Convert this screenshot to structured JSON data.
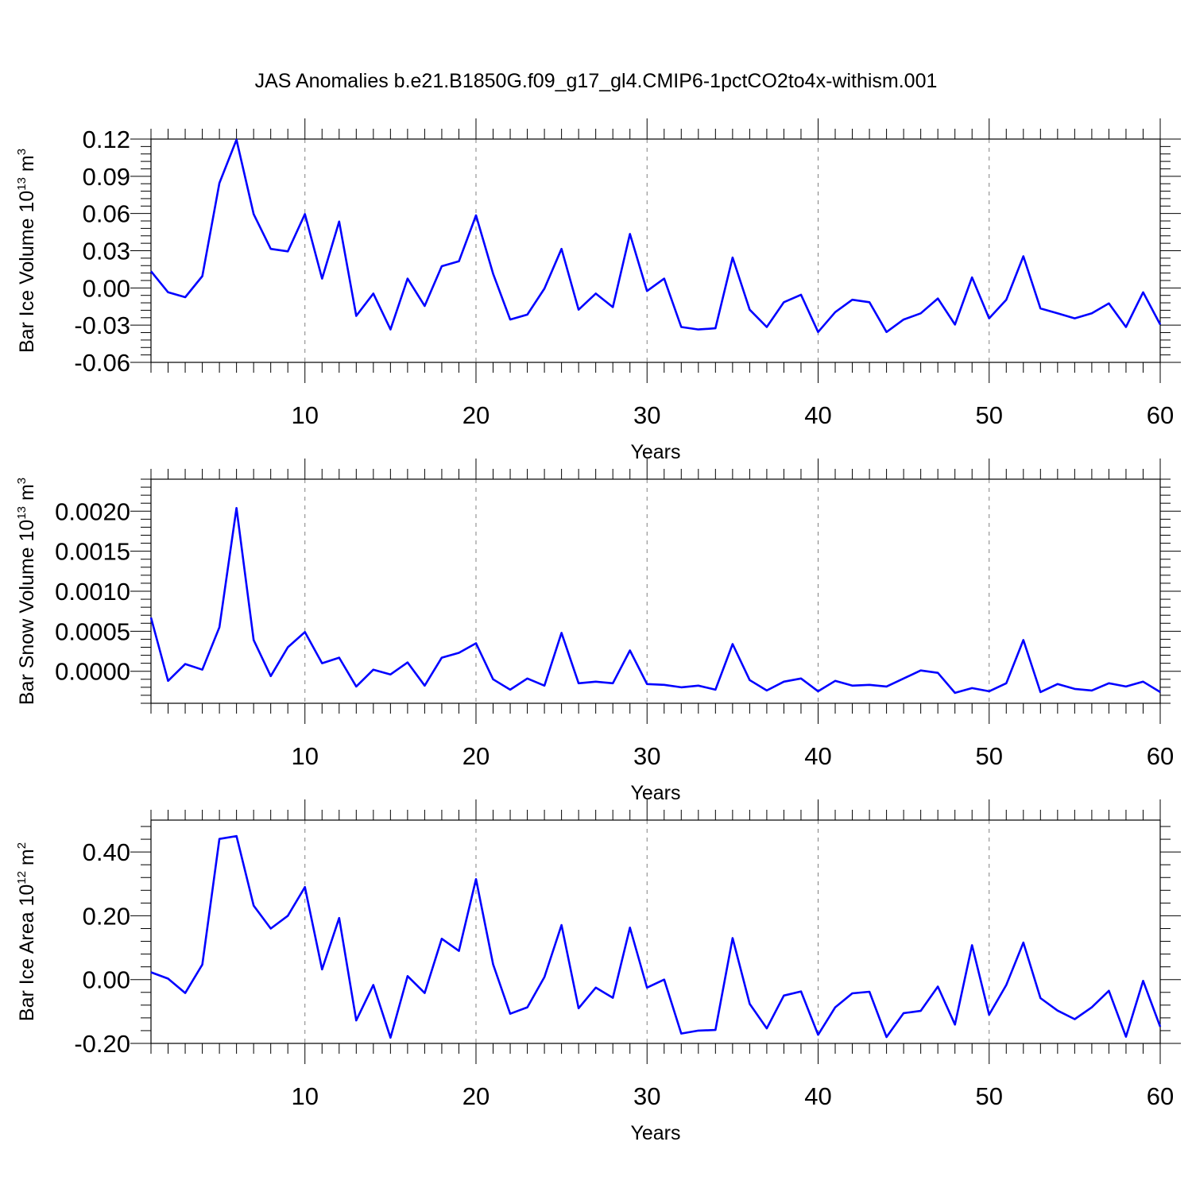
{
  "title": "JAS Anomalies b.e21.B1850G.f09_g17_gl4.CMIP6-1pctCO2to4x-withism.001",
  "colors": {
    "series": "#0000ff",
    "axes": "#000000",
    "grid": "#808080"
  },
  "chart_data": [
    {
      "type": "line",
      "ylabel": {
        "text": "Bar Ice Volume 10",
        "exponent": "13",
        "unit": " m",
        "unit_exponent": "3"
      },
      "xlabel": "Years",
      "xlim": [
        1,
        60
      ],
      "ylim": [
        -0.06,
        0.12
      ],
      "xticks": [
        10,
        20,
        30,
        40,
        50,
        60
      ],
      "xtick_labels": [
        "10",
        "20",
        "30",
        "40",
        "50",
        "60"
      ],
      "yticks": [
        -0.06,
        -0.03,
        0.0,
        0.03,
        0.06,
        0.09,
        0.12
      ],
      "ytick_labels": [
        "-0.06",
        "-0.03",
        "0.00",
        "0.03",
        "0.06",
        "0.09",
        "0.12"
      ],
      "grid": "dashed vertical at x ticks",
      "x": [
        1,
        2,
        3,
        4,
        5,
        6,
        7,
        8,
        9,
        10,
        11,
        12,
        13,
        14,
        15,
        16,
        17,
        18,
        19,
        20,
        21,
        22,
        23,
        24,
        25,
        26,
        27,
        28,
        29,
        30,
        31,
        32,
        33,
        34,
        35,
        36,
        37,
        38,
        39,
        40,
        41,
        42,
        43,
        44,
        45,
        46,
        47,
        48,
        49,
        50,
        51,
        52,
        53,
        54,
        55,
        56,
        57,
        58,
        59,
        60
      ],
      "series": [
        {
          "values": [
            0.0135,
            -0.0035,
            -0.0075,
            0.0095,
            0.0845,
            0.1195,
            0.0595,
            0.0315,
            0.0295,
            0.0595,
            0.0075,
            0.0535,
            -0.0225,
            -0.0045,
            -0.0335,
            0.0075,
            -0.0145,
            0.0175,
            0.0215,
            0.0585,
            0.0115,
            -0.0255,
            -0.0215,
            -0.0005,
            0.0315,
            -0.0175,
            -0.0045,
            -0.0155,
            0.0435,
            -0.0025,
            0.0075,
            -0.0315,
            -0.0335,
            -0.0325,
            0.0245,
            -0.0175,
            -0.0315,
            -0.0115,
            -0.0055,
            -0.0355,
            -0.0195,
            -0.0095,
            -0.0115,
            -0.0355,
            -0.0255,
            -0.0205,
            -0.0085,
            -0.0295,
            0.0085,
            -0.0245,
            -0.0095,
            0.0255,
            -0.0165,
            -0.0205,
            -0.0245,
            -0.0205,
            -0.0125,
            -0.0315,
            -0.0035,
            -0.0295
          ]
        }
      ]
    },
    {
      "type": "line",
      "ylabel": {
        "text": "Bar Snow Volume 10",
        "exponent": "13",
        "unit": " m",
        "unit_exponent": "3"
      },
      "xlabel": "Years",
      "xlim": [
        1,
        60
      ],
      "ylim": [
        -0.0004,
        0.0024
      ],
      "xticks": [
        10,
        20,
        30,
        40,
        50,
        60
      ],
      "xtick_labels": [
        "10",
        "20",
        "30",
        "40",
        "50",
        "60"
      ],
      "yticks": [
        0.0,
        0.0005,
        0.001,
        0.0015,
        0.002
      ],
      "ytick_labels": [
        "0.0000",
        "0.0005",
        "0.0010",
        "0.0015",
        "0.0020"
      ],
      "grid": "dashed vertical at x ticks",
      "x": [
        1,
        2,
        3,
        4,
        5,
        6,
        7,
        8,
        9,
        10,
        11,
        12,
        13,
        14,
        15,
        16,
        17,
        18,
        19,
        20,
        21,
        22,
        23,
        24,
        25,
        26,
        27,
        28,
        29,
        30,
        31,
        32,
        33,
        34,
        35,
        36,
        37,
        38,
        39,
        40,
        41,
        42,
        43,
        44,
        45,
        46,
        47,
        48,
        49,
        50,
        51,
        52,
        53,
        54,
        55,
        56,
        57,
        58,
        59,
        60
      ],
      "series": [
        {
          "values": [
            0.00067,
            -0.00012,
            9e-05,
            2e-05,
            0.00055,
            0.00204,
            0.00039,
            -6e-05,
            0.0003,
            0.00049,
            0.0001,
            0.00017,
            -0.00019,
            2e-05,
            -4e-05,
            0.00011,
            -0.00018,
            0.00017,
            0.00023,
            0.00035,
            -0.0001,
            -0.00023,
            -9e-05,
            -0.00018,
            0.00048,
            -0.00015,
            -0.00013,
            -0.00015,
            0.00026,
            -0.00016,
            -0.00017,
            -0.0002,
            -0.00018,
            -0.00023,
            0.00034,
            -0.00011,
            -0.00024,
            -0.00013,
            -9e-05,
            -0.00025,
            -0.00012,
            -0.00018,
            -0.00017,
            -0.00019,
            -9e-05,
            1e-05,
            -2e-05,
            -0.00027,
            -0.00021,
            -0.00025,
            -0.00015,
            0.00039,
            -0.00026,
            -0.00016,
            -0.00022,
            -0.00024,
            -0.00015,
            -0.00019,
            -0.00013,
            -0.00026
          ]
        }
      ]
    },
    {
      "type": "line",
      "ylabel": {
        "text": "Bar Ice Area 10",
        "exponent": "12",
        "unit": " m",
        "unit_exponent": "2"
      },
      "xlabel": "Years",
      "xlim": [
        1,
        60
      ],
      "ylim": [
        -0.2,
        0.5
      ],
      "xticks": [
        10,
        20,
        30,
        40,
        50,
        60
      ],
      "xtick_labels": [
        "10",
        "20",
        "30",
        "40",
        "50",
        "60"
      ],
      "yticks": [
        -0.2,
        0.0,
        0.2,
        0.4
      ],
      "ytick_labels": [
        "-0.20",
        "0.00",
        "0.20",
        "0.40"
      ],
      "grid": "dashed vertical at x ticks",
      "x": [
        1,
        2,
        3,
        4,
        5,
        6,
        7,
        8,
        9,
        10,
        11,
        12,
        13,
        14,
        15,
        16,
        17,
        18,
        19,
        20,
        21,
        22,
        23,
        24,
        25,
        26,
        27,
        28,
        29,
        30,
        31,
        32,
        33,
        34,
        35,
        36,
        37,
        38,
        39,
        40,
        41,
        42,
        43,
        44,
        45,
        46,
        47,
        48,
        49,
        50,
        51,
        52,
        53,
        54,
        55,
        56,
        57,
        58,
        59,
        60
      ],
      "series": [
        {
          "values": [
            0.023,
            0.003,
            -0.042,
            0.047,
            0.441,
            0.45,
            0.232,
            0.16,
            0.2,
            0.29,
            0.032,
            0.193,
            -0.128,
            -0.017,
            -0.182,
            0.011,
            -0.042,
            0.128,
            0.09,
            0.315,
            0.048,
            -0.107,
            -0.087,
            0.008,
            0.171,
            -0.09,
            -0.025,
            -0.057,
            0.163,
            -0.025,
            0.0,
            -0.169,
            -0.16,
            -0.158,
            0.13,
            -0.076,
            -0.153,
            -0.05,
            -0.037,
            -0.173,
            -0.087,
            -0.043,
            -0.038,
            -0.18,
            -0.105,
            -0.098,
            -0.022,
            -0.141,
            0.108,
            -0.11,
            -0.017,
            0.116,
            -0.058,
            -0.097,
            -0.124,
            -0.087,
            -0.035,
            -0.179,
            -0.004,
            -0.148
          ]
        }
      ]
    }
  ]
}
